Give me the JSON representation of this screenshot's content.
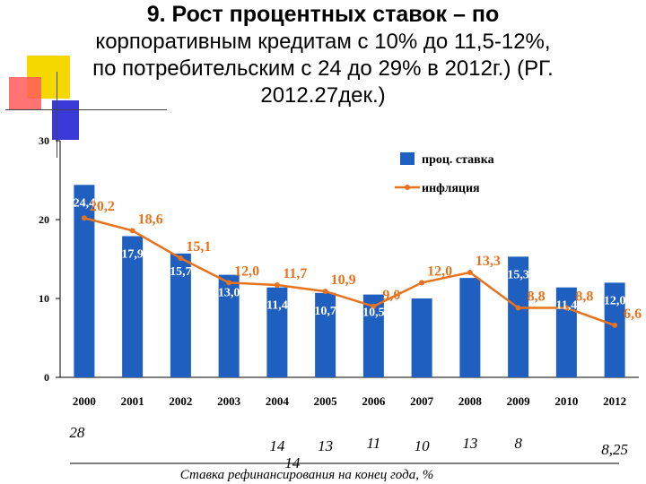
{
  "title": {
    "line1": "9. Рост процентных ставок – по",
    "line2": "корпоративным кредитам с 10% до 11,5-12%,",
    "line3": "по потребительским с 24 до 29% в 2012г.) (РГ.",
    "line4": "2012.27дек.)"
  },
  "chart_data": {
    "type": "bar",
    "categories": [
      "2000",
      "2001",
      "2002",
      "2003",
      "2004",
      "2005",
      "2006",
      "2007",
      "2008",
      "2009",
      "2010",
      "2012"
    ],
    "ylim": [
      0,
      30
    ],
    "yticks": [
      "0",
      "10",
      "20",
      "30"
    ],
    "grid": false,
    "legend_position": "top-right",
    "series": [
      {
        "name": "проц. ставка",
        "type": "bar",
        "color": "#1f5fbf",
        "values": [
          24.4,
          17.9,
          15.7,
          13.0,
          11.4,
          10.7,
          10.5,
          10.0,
          12.6,
          15.3,
          11.4,
          12.0
        ],
        "labels": [
          "24,4",
          "17,9",
          "15,7",
          "13,0",
          "11,4",
          "10,7",
          "10,5",
          "",
          "",
          "15,3",
          "11,4",
          "12,0"
        ]
      },
      {
        "name": "инфляция",
        "type": "line",
        "color": "#e8731e",
        "values": [
          20.2,
          18.6,
          15.1,
          12.0,
          11.7,
          10.9,
          9.0,
          12.0,
          13.3,
          8.8,
          8.8,
          6.6
        ],
        "labels": [
          "20,2",
          "18,6",
          "15,1",
          "12,0",
          "11,7",
          "10,9",
          "9,0",
          "12,0",
          "13,3",
          "8,8",
          "8,8",
          "6,6"
        ]
      }
    ],
    "refinancing": {
      "caption": "Ставка рефинансирования на конец года, %",
      "values": [
        "28",
        "",
        "",
        "",
        "14",
        "13",
        "11",
        "10",
        "13",
        "8",
        "",
        "8,25"
      ],
      "extra": "14"
    }
  }
}
